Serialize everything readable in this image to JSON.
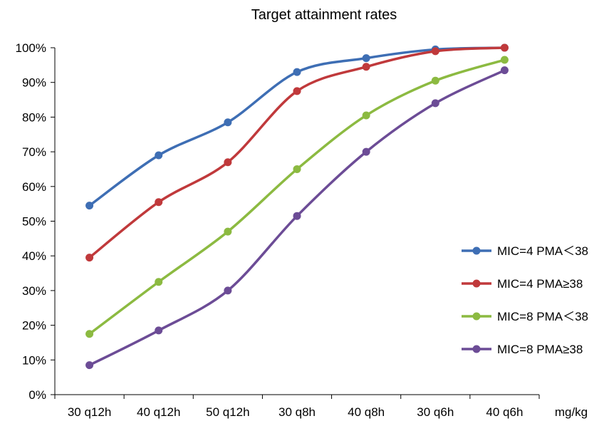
{
  "chart_data": {
    "type": "line",
    "title": "Target attainment rates",
    "xlabel": "mg/kg",
    "ylabel": "",
    "categories": [
      "30 q12h",
      "40 q12h",
      "50 q12h",
      "30 q8h",
      "40 q8h",
      "30 q6h",
      "40 q6h"
    ],
    "y_tick_labels": [
      "0%",
      "10%",
      "20%",
      "30%",
      "40%",
      "50%",
      "60%",
      "70%",
      "80%",
      "90%",
      "100%"
    ],
    "ylim": [
      0,
      100
    ],
    "grid": false,
    "legend_position": "right",
    "series": [
      {
        "name": "MIC=4 PMA＜38",
        "color": "#3e6eb4",
        "values": [
          54.5,
          69,
          78.5,
          93,
          97,
          99.5,
          100
        ]
      },
      {
        "name": "MIC=4 PMA≥38",
        "color": "#c0393b",
        "values": [
          39.5,
          55.5,
          67,
          87.5,
          94.5,
          99,
          100
        ]
      },
      {
        "name": "MIC=8 PMA＜38",
        "color": "#8cba41",
        "values": [
          17.5,
          32.5,
          47,
          65,
          80.5,
          90.5,
          96.5
        ]
      },
      {
        "name": "MIC=8 PMA≥38",
        "color": "#6c4c96",
        "values": [
          8.5,
          18.5,
          30,
          51.5,
          70,
          84,
          93.5
        ]
      }
    ]
  }
}
